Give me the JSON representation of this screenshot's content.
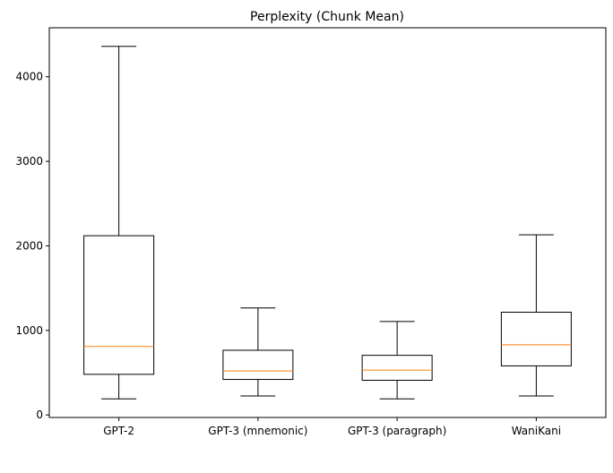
{
  "chart_data": {
    "type": "boxplot",
    "title": "Perplexity (Chunk Mean)",
    "xlabel": "",
    "ylabel": "",
    "categories": [
      "GPT-2",
      "GPT-3 (mnemonic)",
      "GPT-3 (paragraph)",
      "WaniKani"
    ],
    "boxes": [
      {
        "category": "GPT-2",
        "whisker_low": 190,
        "q1": 480,
        "median": 810,
        "q3": 2120,
        "whisker_high": 4360
      },
      {
        "category": "GPT-3 (mnemonic)",
        "whisker_low": 225,
        "q1": 420,
        "median": 520,
        "q3": 765,
        "whisker_high": 1265
      },
      {
        "category": "GPT-3 (paragraph)",
        "whisker_low": 190,
        "q1": 410,
        "median": 530,
        "q3": 705,
        "whisker_high": 1105
      },
      {
        "category": "WaniKani",
        "whisker_low": 225,
        "q1": 580,
        "median": 830,
        "q3": 1215,
        "whisker_high": 2130
      }
    ],
    "y_ticks": [
      0,
      1000,
      2000,
      3000,
      4000
    ],
    "ylim": [
      -30,
      4580
    ],
    "grid": false,
    "colors": {
      "box": "#000000",
      "median": "#ff7f0e"
    }
  }
}
